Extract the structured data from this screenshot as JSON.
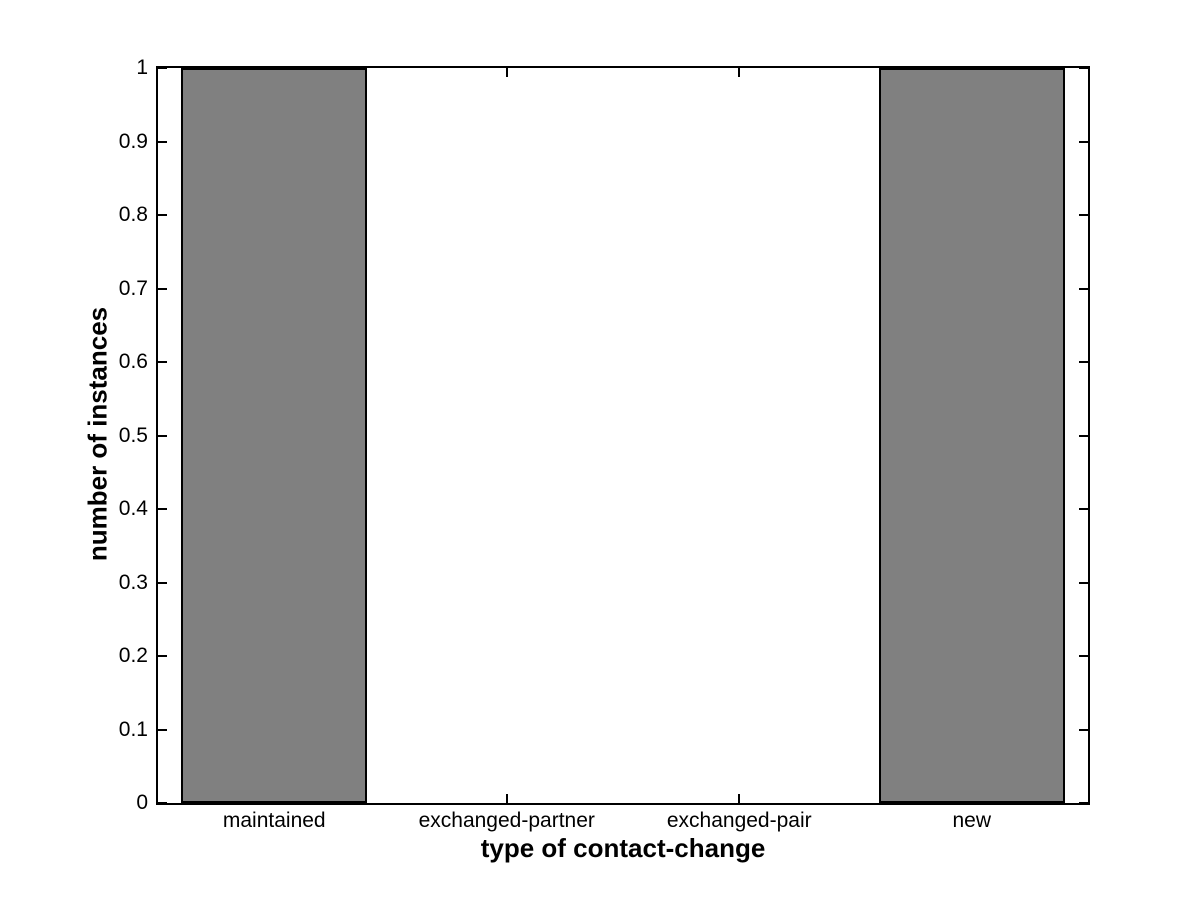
{
  "chart_data": {
    "type": "bar",
    "title": "",
    "categories": [
      "maintained",
      "exchanged-partner",
      "exchanged-pair",
      "new"
    ],
    "values": [
      1,
      0,
      0,
      1
    ],
    "xlabel": "type of contact-change",
    "ylabel": "number of instances",
    "ylim": [
      0,
      1
    ],
    "yticks": [
      0,
      0.1,
      0.2,
      0.3,
      0.4,
      0.5,
      0.6,
      0.7,
      0.8,
      0.9,
      1
    ],
    "ytick_labels": [
      "0",
      "0.1",
      "0.2",
      "0.3",
      "0.4",
      "0.5",
      "0.6",
      "0.7",
      "0.8",
      "0.9",
      "1"
    ],
    "bar_width_fraction": 0.8,
    "bar_fill_color": "#808080",
    "bar_edge_color": "#000000",
    "axis_color": "#000000",
    "background_color": "#ffffff",
    "grid": false,
    "legend": null,
    "tick_direction": "in",
    "box": true
  }
}
